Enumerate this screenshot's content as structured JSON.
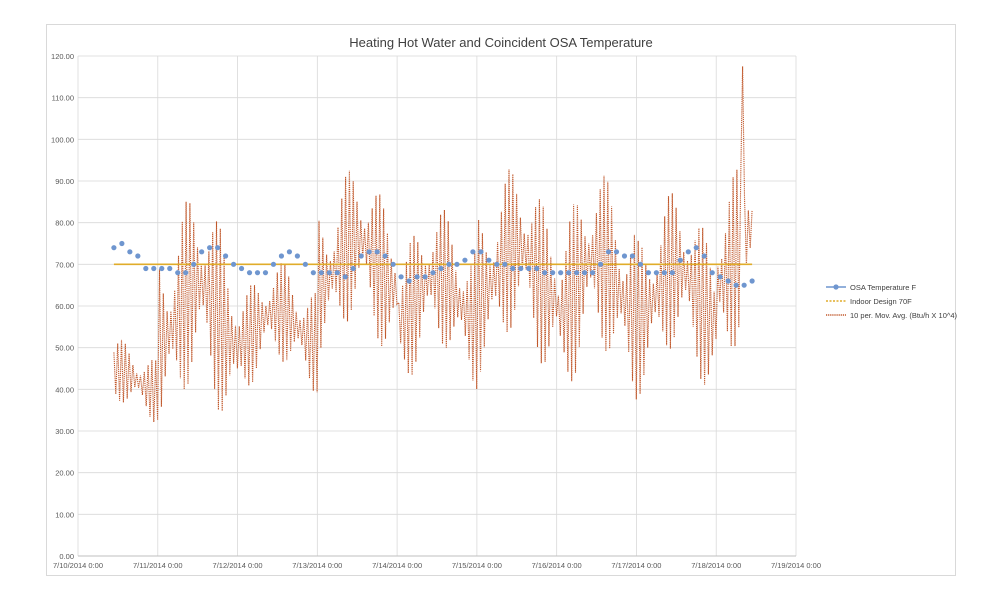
{
  "chart_data": {
    "type": "line",
    "title": "Heating Hot Water and Coincident  OSA Temperature",
    "xlabel": "",
    "ylabel": "",
    "ylim": [
      0,
      120
    ],
    "y_ticks": [
      "0.00",
      "10.00",
      "20.00",
      "30.00",
      "40.00",
      "50.00",
      "60.00",
      "70.00",
      "80.00",
      "90.00",
      "100.00",
      "110.00",
      "120.00"
    ],
    "x_ticks": [
      "7/10/2014 0:00",
      "7/11/2014 0:00",
      "7/12/2014 0:00",
      "7/13/2014 0:00",
      "7/14/2014 0:00",
      "7/15/2014 0:00",
      "7/16/2014 0:00",
      "7/17/2014 0:00",
      "7/18/2014 0:00",
      "7/19/2014 0:00"
    ],
    "x_units": "days since 7/10/2014 0:00",
    "xlim": [
      0,
      9
    ],
    "grid": true,
    "legend_position": "right",
    "series": [
      {
        "name": "OSA Temperature F",
        "style": "markers",
        "color": "#6f96cf",
        "x": [
          0.45,
          0.55,
          0.65,
          0.75,
          0.85,
          0.95,
          1.05,
          1.15,
          1.25,
          1.35,
          1.45,
          1.55,
          1.65,
          1.75,
          1.85,
          1.95,
          2.05,
          2.15,
          2.25,
          2.35,
          2.45,
          2.55,
          2.65,
          2.75,
          2.85,
          2.95,
          3.05,
          3.15,
          3.25,
          3.35,
          3.45,
          3.55,
          3.65,
          3.75,
          3.85,
          3.95,
          4.05,
          4.15,
          4.25,
          4.35,
          4.45,
          4.55,
          4.65,
          4.75,
          4.85,
          4.95,
          5.05,
          5.15,
          5.25,
          5.35,
          5.45,
          5.55,
          5.65,
          5.75,
          5.85,
          5.95,
          6.05,
          6.15,
          6.25,
          6.35,
          6.45,
          6.55,
          6.65,
          6.75,
          6.85,
          6.95,
          7.05,
          7.15,
          7.25,
          7.35,
          7.45,
          7.55,
          7.65,
          7.75,
          7.85,
          7.95,
          8.05,
          8.15,
          8.25,
          8.35,
          8.45
        ],
        "values": [
          74,
          75,
          73,
          72,
          69,
          69,
          69,
          69,
          68,
          68,
          70,
          73,
          74,
          74,
          72,
          70,
          69,
          68,
          68,
          68,
          70,
          72,
          73,
          72,
          70,
          68,
          68,
          68,
          68,
          67,
          69,
          72,
          73,
          73,
          72,
          70,
          67,
          66,
          67,
          67,
          68,
          69,
          70,
          70,
          71,
          73,
          73,
          71,
          70,
          70,
          69,
          69,
          69,
          69,
          68,
          68,
          68,
          68,
          68,
          68,
          68,
          70,
          73,
          73,
          72,
          72,
          70,
          68,
          68,
          68,
          68,
          71,
          73,
          74,
          72,
          68,
          67,
          66,
          65,
          65,
          66
        ]
      },
      {
        "name": "Indoor Design 70F",
        "style": "line",
        "color": "#e0ac2a",
        "x": [
          0.45,
          8.45
        ],
        "values": [
          70,
          70
        ]
      },
      {
        "name": "10 per. Mov. Avg. (Btu/h X 10^4)",
        "style": "dotted-line",
        "color": "#c0572a",
        "samples_per_day": 42,
        "x_start": 0.45,
        "x_end": 8.45,
        "daily_envelope": [
          {
            "center": 42,
            "amp": 10
          },
          {
            "center": 58,
            "amp": 30
          },
          {
            "center": 55,
            "amp": 16
          },
          {
            "center": 70,
            "amp": 24
          },
          {
            "center": 62,
            "amp": 22
          },
          {
            "center": 68,
            "amp": 26
          },
          {
            "center": 65,
            "amp": 28
          },
          {
            "center": 63,
            "amp": 25
          },
          {
            "center": 72,
            "amp": 28
          },
          {
            "center": 85,
            "amp": 22
          }
        ],
        "peak_value": 117.5
      }
    ]
  }
}
